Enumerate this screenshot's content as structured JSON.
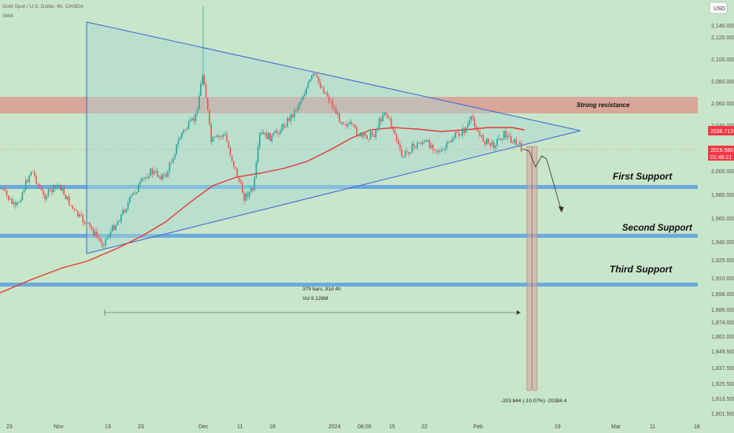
{
  "header": {
    "symbol": "Gold Spot / U.S. Dollar, 4h, OANDA",
    "indicator": "SMA",
    "currency": "USD"
  },
  "chart_data": {
    "type": "candlestick",
    "price_scale": {
      "ticks": [
        "2,140.000",
        "2,120.000",
        "2,100.000",
        "2,080.000",
        "2,060.000",
        "2,040.000",
        "2,020.000",
        "2,000.000",
        "1,980.000",
        "1,960.000",
        "1,940.000",
        "1,925.000",
        "1,910.000",
        "1,898.000",
        "1,886.000",
        "1,874.000",
        "1,862.000",
        "1,849.500",
        "1,837.500",
        "1,825.500",
        "1,813.500",
        "1,801.500"
      ],
      "current_price": "2036.713",
      "last_price": "2019.580",
      "countdown": "01:46:21"
    },
    "time_axis": [
      "23",
      "Nov",
      "13",
      "23",
      "Dec",
      "11",
      "18",
      "2024",
      "08:00",
      "15",
      "22",
      "Feb",
      "19",
      "Mar",
      "11",
      "18"
    ],
    "annotations": {
      "resistance_label": "Strong resistance",
      "support_1": "First Support",
      "support_2": "Second Support",
      "support_3": "Third Support",
      "range_bars": "379 bars, 91d 4h",
      "range_vol": "Vol 9.126M",
      "measure": "-203.844 (-10.07%) -20384.4"
    },
    "colors": {
      "background": "#c8e6c9",
      "resistance_zone": "#e57373",
      "support_line": "#5c9fe0",
      "triangle": "#3b63d6",
      "sma": "#e53935",
      "bull": "#26a69a",
      "bear": "#ef5350",
      "price_tag": "#f23645"
    }
  }
}
